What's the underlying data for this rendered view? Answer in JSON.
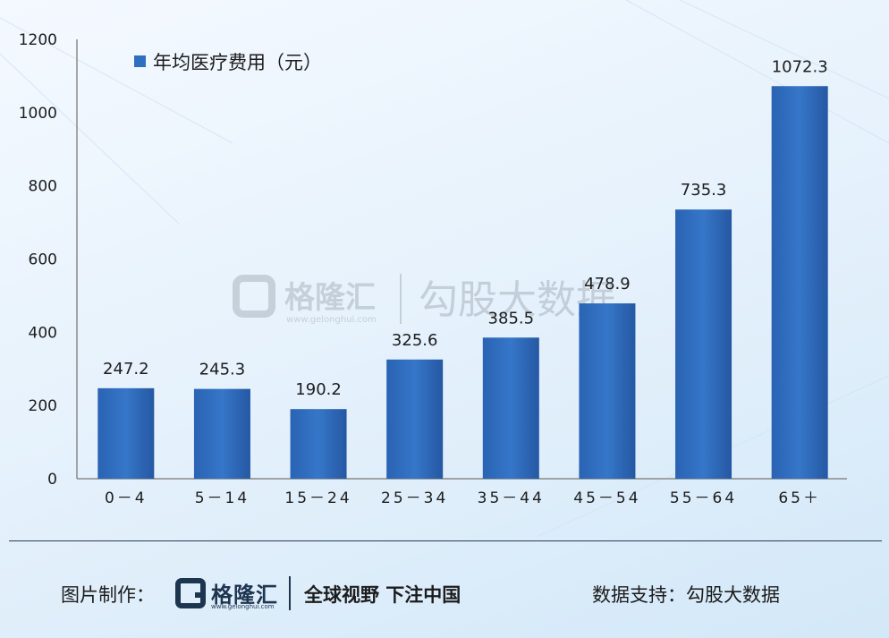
{
  "chart_data": {
    "type": "bar",
    "categories": [
      "0－4",
      "5－14",
      "15－24",
      "25－34",
      "35－44",
      "45－54",
      "55－64",
      "65＋"
    ],
    "series": [
      {
        "name": "年均医疗费用（元）",
        "values": [
          247.2,
          245.3,
          190.2,
          325.6,
          385.5,
          478.9,
          735.3,
          1072.3
        ]
      }
    ],
    "yticks": [
      0,
      200,
      400,
      600,
      800,
      1000,
      1200
    ],
    "ylim": [
      0,
      1200
    ],
    "grid": false,
    "legend_position": "top-left",
    "bar_color": "#2f6fc0",
    "bar_color_dark": "#1f4f96"
  },
  "watermark": {
    "brand": "格隆汇",
    "url": "www.gelonghui.com",
    "source": "勾股大数据"
  },
  "footer": {
    "credit_label": "图片制作：",
    "logo_name": "格隆汇",
    "logo_url": "www.gelonghui.com",
    "slogan": "全球视野 下注中国",
    "source": "数据支持：勾股大数据"
  }
}
